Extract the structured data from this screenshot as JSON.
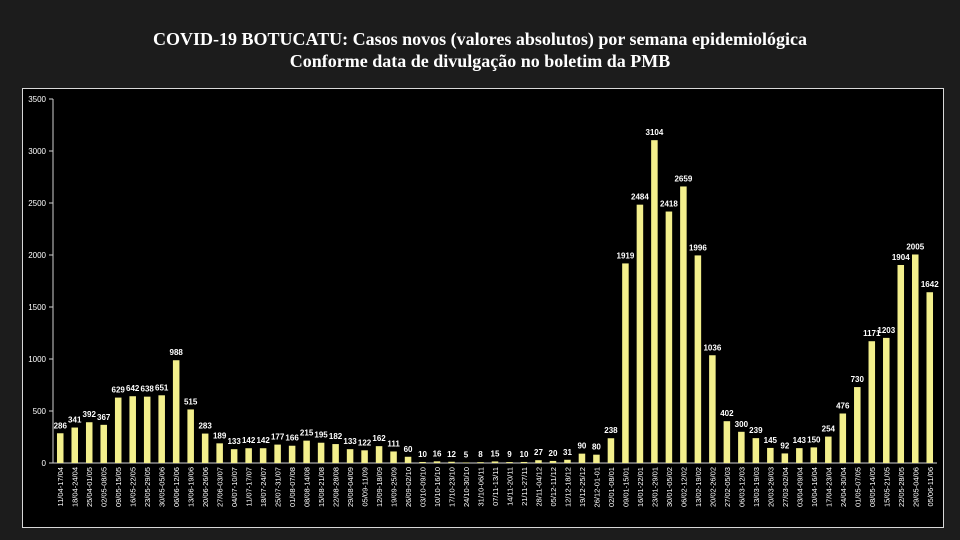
{
  "title": "COVID-19 BOTUCATU: Casos novos (valores absolutos) por semana epidemiológica",
  "subtitle": "Conforme data de divulgação no boletim da PMB",
  "colors": {
    "background": "#1c1c1c",
    "plot_background": "#000000",
    "bar": "#f3ef8c",
    "text": "#ffffff",
    "axis": "#cfcfcf"
  },
  "chart_data": {
    "type": "bar",
    "title": "COVID-19 BOTUCATU: Casos novos (valores absolutos) por semana epidemiológica",
    "subtitle": "Conforme data de divulgação no boletim da PMB",
    "xlabel": "",
    "ylabel": "",
    "ylim": [
      0,
      3500
    ],
    "yticks": [
      0,
      500,
      1000,
      1500,
      2000,
      2500,
      3000,
      3500
    ],
    "grid": false,
    "legend": "none",
    "categories": [
      "11/04-17/04",
      "18/04-24/04",
      "25/04-01/05",
      "02/05-08/05",
      "09/05-15/05",
      "16/05-22/05",
      "23/05-29/05",
      "30/05-05/06",
      "06/06-12/06",
      "13/06-19/06",
      "20/06-26/06",
      "27/06-03/07",
      "04/07-10/07",
      "11/07-17/07",
      "18/07-24/07",
      "25/07-31/07",
      "01/08-07/08",
      "08/08-14/08",
      "15/08-21/08",
      "22/08-28/08",
      "29/08-04/09",
      "05/09-11/09",
      "12/09-18/09",
      "19/09-25/09",
      "26/09-02/10",
      "03/10-09/10",
      "10/10-16/10",
      "17/10-23/10",
      "24/10-30/10",
      "31/10-06/11",
      "07/11-13/11",
      "14/11-20/11",
      "21/11-27/11",
      "28/11-04/12",
      "05/12-11/12",
      "12/12-18/12",
      "19/12-25/12",
      "26/12-01-01",
      "02/01-08/01",
      "09/01-15/01",
      "16/01-22/01",
      "23/01-29/01",
      "30/01-05/02",
      "06/02-12/02",
      "13/02-19/02",
      "20/02-26/02",
      "27/02-05/03",
      "06/03-12/03",
      "13/03-19/03",
      "20/03-26/03",
      "27/03-02/04",
      "03/04-09/04",
      "10/04-16/04",
      "17/04-23/04",
      "24/04-30/04",
      "01/05-07/05",
      "08/05-14/05",
      "15/05-21/05",
      "22/05-28/05",
      "29/05-04/06",
      "05/06-11/06"
    ],
    "values": [
      286,
      341,
      392,
      367,
      629,
      642,
      638,
      651,
      988,
      515,
      283,
      189,
      133,
      142,
      142,
      177,
      166,
      215,
      195,
      182,
      133,
      122,
      162,
      111,
      60,
      10,
      16,
      12,
      5,
      8,
      15,
      9,
      10,
      27,
      20,
      31,
      90,
      80,
      238,
      1919,
      2484,
      3104,
      2418,
      2659,
      1996,
      1036,
      402,
      300,
      239,
      145,
      92,
      143,
      150,
      254,
      476,
      730,
      1171,
      1203,
      1904,
      2005,
      1642
    ]
  }
}
